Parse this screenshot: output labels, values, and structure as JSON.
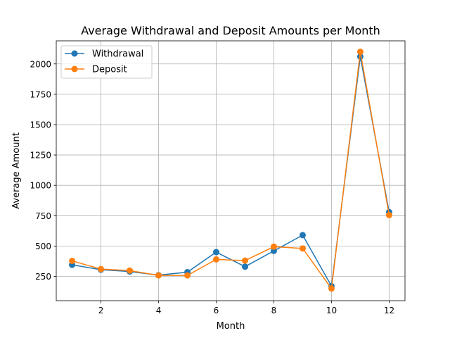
{
  "chart_data": {
    "type": "line",
    "title": "Average Withdrawal and Deposit Amounts per Month",
    "xlabel": "Month",
    "ylabel": "Average Amount",
    "x": [
      1,
      2,
      3,
      4,
      5,
      6,
      7,
      8,
      9,
      10,
      11,
      12
    ],
    "xlim": [
      0.45,
      12.55
    ],
    "ylim": [
      50,
      2190
    ],
    "xticks": [
      2,
      4,
      6,
      8,
      10,
      12
    ],
    "yticks": [
      250,
      500,
      750,
      1000,
      1250,
      1500,
      1750,
      2000
    ],
    "grid": true,
    "legend_position": "upper-left",
    "series": [
      {
        "name": "Withdrawal",
        "color": "#1f77b4",
        "marker": "circle",
        "values": [
          345,
          305,
          290,
          260,
          285,
          450,
          330,
          460,
          590,
          170,
          2060,
          780
        ]
      },
      {
        "name": "Deposit",
        "color": "#ff7f0e",
        "marker": "circle",
        "values": [
          378,
          310,
          298,
          258,
          258,
          390,
          380,
          495,
          480,
          150,
          2100,
          755
        ]
      }
    ]
  }
}
